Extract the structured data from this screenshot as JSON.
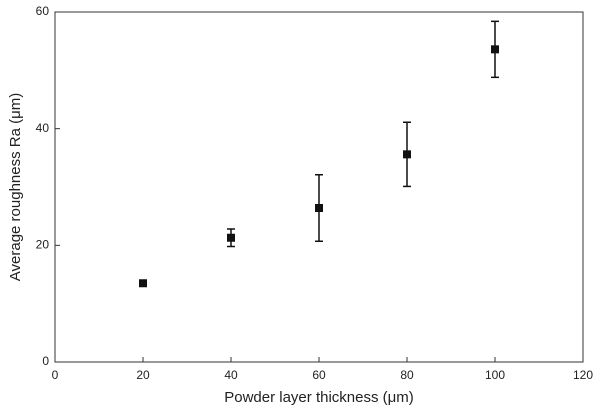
{
  "chart_data": {
    "type": "scatter",
    "xlabel": "Powder layer thickness (μm)",
    "ylabel": "Average roughness Ra (μm)",
    "series": [
      {
        "name": "Ra",
        "color": "#111111",
        "x": [
          20,
          40,
          60,
          80,
          100
        ],
        "values": [
          13.5,
          21.3,
          26.4,
          35.6,
          53.6
        ],
        "errors": [
          0.5,
          1.5,
          5.7,
          5.5,
          4.8
        ]
      }
    ],
    "xlim": [
      0,
      120
    ],
    "xticks": [
      0,
      20,
      40,
      60,
      80,
      100,
      120
    ],
    "ylim": [
      0,
      60
    ],
    "yticks": [
      0,
      20,
      40,
      60
    ],
    "grid": false
  }
}
